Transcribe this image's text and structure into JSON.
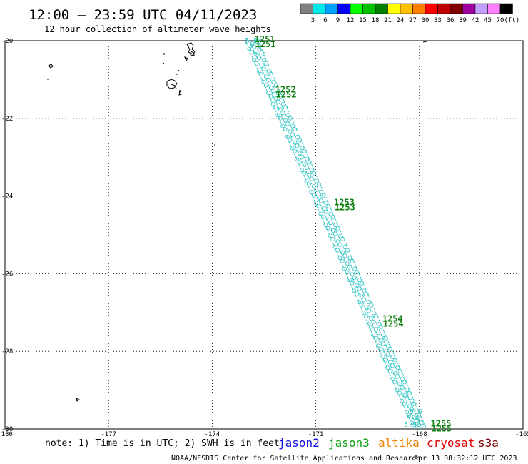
{
  "title": "12:00 — 23:59 UTC 04/11/2023",
  "subtitle": "12 hour collection of altimeter wave heights",
  "legend": {
    "ticks": [
      "3",
      "6",
      "9",
      "12",
      "15",
      "18",
      "21",
      "24",
      "27",
      "30",
      "33",
      "36",
      "39",
      "42",
      "45",
      "70"
    ],
    "unit": "(ft)",
    "colors": [
      "#808080",
      "#00e8e8",
      "#00a0ff",
      "#0000ff",
      "#00ff00",
      "#00c000",
      "#008000",
      "#ffff00",
      "#ffc000",
      "#ff8000",
      "#ff0000",
      "#c00000",
      "#800000",
      "#a000a0",
      "#c0a0ff",
      "#ff80ff",
      "#000000"
    ]
  },
  "map": {
    "lon_range": [
      -180,
      -165
    ],
    "lat_range": [
      -30,
      -20
    ],
    "lon_ticks": [
      "-180",
      "-177",
      "-174",
      "-171",
      "-168",
      "-165"
    ],
    "lat_ticks": [
      "-20",
      "-22",
      "-24",
      "-26",
      "-28",
      "-30"
    ],
    "grid": "dotted"
  },
  "tracks": {
    "satellite": "jason3",
    "track_color": "#3cc8c8",
    "time_color": "#108010",
    "time_labels": [
      {
        "time": "1251",
        "lon": -172.9,
        "lat": -20.0
      },
      {
        "time": "1252",
        "lon": -172.3,
        "lat": -21.3
      },
      {
        "time": "1253",
        "lon": -170.6,
        "lat": -24.2
      },
      {
        "time": "1254",
        "lon": -169.2,
        "lat": -27.2
      },
      {
        "time": "1255",
        "lon": -167.8,
        "lat": -29.9
      }
    ],
    "swh_samples_start": [
      "7.94",
      "7.2",
      "6.5"
    ],
    "swh_samples_end": [
      "5.50",
      "5.6",
      "5.9"
    ]
  },
  "footer": {
    "note": "note: 1) Time is in UTC; 2) SWH is in feet",
    "satellites": [
      {
        "name": "jason2",
        "color": "#1010e0"
      },
      {
        "name": "jason3",
        "color": "#10a010"
      },
      {
        "name": "altika",
        "color": "#f08000"
      },
      {
        "name": "cryosat",
        "color": "#e00000"
      },
      {
        "name": "s3a",
        "color": "#800000"
      }
    ],
    "credit": "NOAA/NESDIS Center for Satellite Applications and Research",
    "timestamp": "Apr 13 08:32:12 UTC 2023"
  }
}
